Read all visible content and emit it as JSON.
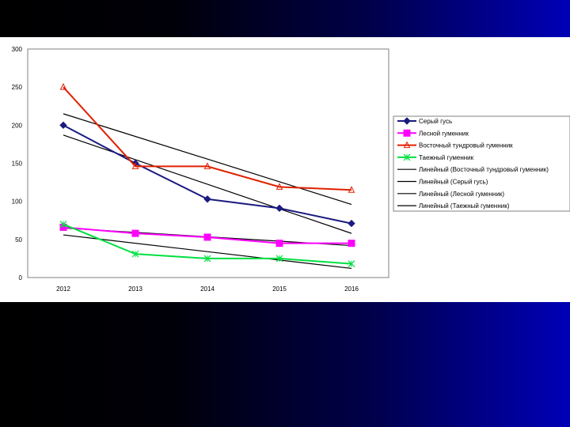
{
  "chart_data": {
    "type": "line",
    "title": "",
    "xlabel": "",
    "ylabel": "",
    "ylim": [
      0,
      300
    ],
    "yticks": [
      0,
      50,
      100,
      150,
      200,
      250,
      300
    ],
    "categories": [
      "2012",
      "2013",
      "2014",
      "2015",
      "2016"
    ],
    "grid": false,
    "legend_position": "right",
    "series": [
      {
        "name": "Серый гусь",
        "values": [
          200,
          150,
          103,
          91,
          71
        ],
        "color": "#1a1a80",
        "marker": "diamond"
      },
      {
        "name": "Лесной гуменник",
        "values": [
          66,
          58,
          53,
          45,
          45
        ],
        "color": "#ff00ff",
        "marker": "square"
      },
      {
        "name": "Восточный тундровый гуменник",
        "values": [
          250,
          146,
          146,
          119,
          115
        ],
        "color": "#e02000",
        "marker": "triangle"
      },
      {
        "name": "Таежный гуменник",
        "values": [
          70,
          31,
          25,
          25,
          18
        ],
        "color": "#00e040",
        "marker": "cross"
      }
    ],
    "trendlines": [
      {
        "name": "Линейный (Восточный тундровый гуменник)",
        "start": 215,
        "end": 96,
        "color": "#000000"
      },
      {
        "name": "Линейный (Серый гусь)",
        "start": 187,
        "end": 58,
        "color": "#000000"
      },
      {
        "name": "Линейный (Лесной гуменник)",
        "start": 65,
        "end": 42,
        "color": "#000000"
      },
      {
        "name": "Линейный (Таежный гуменник)",
        "start": 56,
        "end": 12,
        "color": "#000000"
      }
    ]
  }
}
